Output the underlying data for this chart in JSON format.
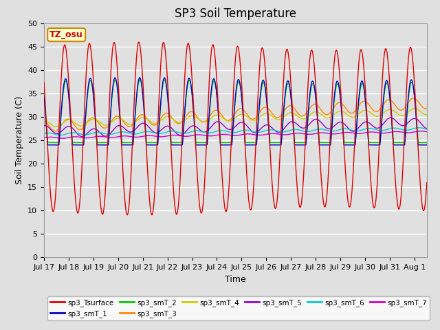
{
  "title": "SP3 Soil Temperature",
  "xlabel": "Time",
  "ylabel": "Soil Temperature (C)",
  "ylim": [
    0,
    50
  ],
  "yticks": [
    0,
    5,
    10,
    15,
    20,
    25,
    30,
    35,
    40,
    45,
    50
  ],
  "xtick_labels": [
    "Jul 17",
    "Jul 18",
    "Jul 19",
    "Jul 20",
    "Jul 21",
    "Jul 22",
    "Jul 23",
    "Jul 24",
    "Jul 25",
    "Jul 26",
    "Jul 27",
    "Jul 28",
    "Jul 29",
    "Jul 30",
    "Jul 31",
    "Aug 1"
  ],
  "annotation_text": "TZ_osu",
  "annotation_color": "#cc0000",
  "annotation_bg": "#ffffcc",
  "annotation_border": "#cc8800",
  "series_colors": {
    "sp3_Tsurface": "#dd0000",
    "sp3_smT_1": "#0000cc",
    "sp3_smT_2": "#00cc00",
    "sp3_smT_3": "#ff8800",
    "sp3_smT_4": "#cccc00",
    "sp3_smT_5": "#9900cc",
    "sp3_smT_6": "#00cccc",
    "sp3_smT_7": "#cc00cc"
  },
  "background_color": "#e0e0e0",
  "grid_color": "#ffffff",
  "title_fontsize": 12,
  "axis_label_fontsize": 9,
  "tick_fontsize": 8
}
